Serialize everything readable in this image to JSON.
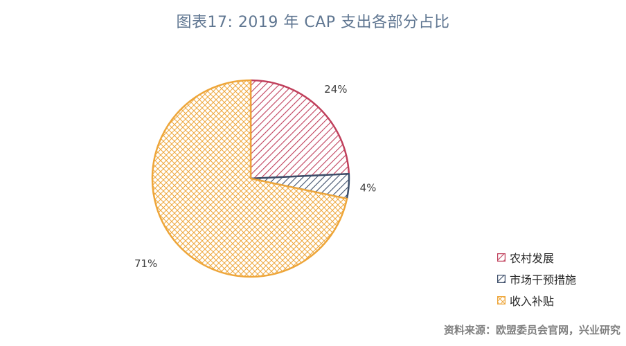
{
  "title": "图表17: 2019 年 CAP 支出各部分占比",
  "source": "资料来源：欧盟委员会官网，兴业研究",
  "chart_data": {
    "type": "pie",
    "title": "图表17: 2019 年 CAP 支出各部分占比",
    "labels": [
      "农村发展",
      "市场干预措施",
      "收入补贴"
    ],
    "values": [
      24,
      4,
      71
    ],
    "value_labels": [
      "24%",
      "4%",
      "71%"
    ],
    "unit": "%",
    "colors": [
      "#c0405c",
      "#3d4e6a",
      "#eea63a"
    ],
    "patterns": [
      "diagonal-hatch",
      "diagonal-hatch",
      "cross-hatch"
    ],
    "start": "12 o'clock",
    "direction": "clockwise",
    "legend": "bottom-right"
  }
}
